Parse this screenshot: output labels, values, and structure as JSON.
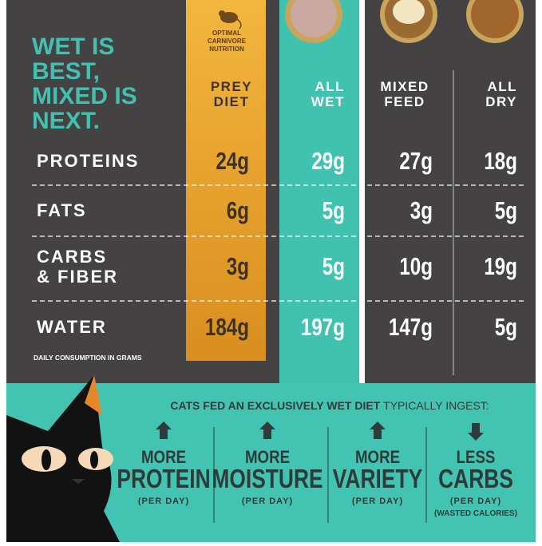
{
  "headline": [
    "WET IS",
    "BEST,",
    "MIXED IS",
    "NEXT."
  ],
  "badge": [
    "OPTIMAL",
    "CARNIVORE",
    "NUTRITION"
  ],
  "table": {
    "columns": [
      [
        "PREY",
        "DIET"
      ],
      [
        "ALL",
        "WET"
      ],
      [
        "MIXED",
        "FEED"
      ],
      [
        "ALL",
        "DRY"
      ]
    ],
    "rows": [
      {
        "label": [
          "PROTEINS"
        ],
        "values": [
          "24g",
          "29g",
          "27g",
          "18g"
        ]
      },
      {
        "label": [
          "FATS"
        ],
        "values": [
          "6g",
          "5g",
          "3g",
          "5g"
        ]
      },
      {
        "label": [
          "CARBS",
          "& FIBER"
        ],
        "values": [
          "3g",
          "5g",
          "10g",
          "19g"
        ]
      },
      {
        "label": [
          "WATER"
        ],
        "values": [
          "184g",
          "197g",
          "147g",
          "5g"
        ]
      }
    ],
    "footnote": "DAILY CONSUMPTION IN GRAMS"
  },
  "summary": {
    "intro_bold": "CATS FED AN EXCLUSIVELY WET DIET",
    "intro_rest": "TYPICALLY INGEST:",
    "benefits": [
      {
        "direction": "up",
        "word": "MORE",
        "big": "PROTEIN",
        "note": "(PER DAY)"
      },
      {
        "direction": "up",
        "word": "MORE",
        "big": "MOISTURE",
        "note": "(PER DAY)"
      },
      {
        "direction": "up",
        "word": "MORE",
        "big": "VARIETY",
        "note": "(PER DAY)"
      },
      {
        "direction": "down",
        "word": "LESS",
        "big": "CARBS",
        "note": "(PER DAY)",
        "extra": "(WASTED CALORIES)"
      }
    ]
  }
}
